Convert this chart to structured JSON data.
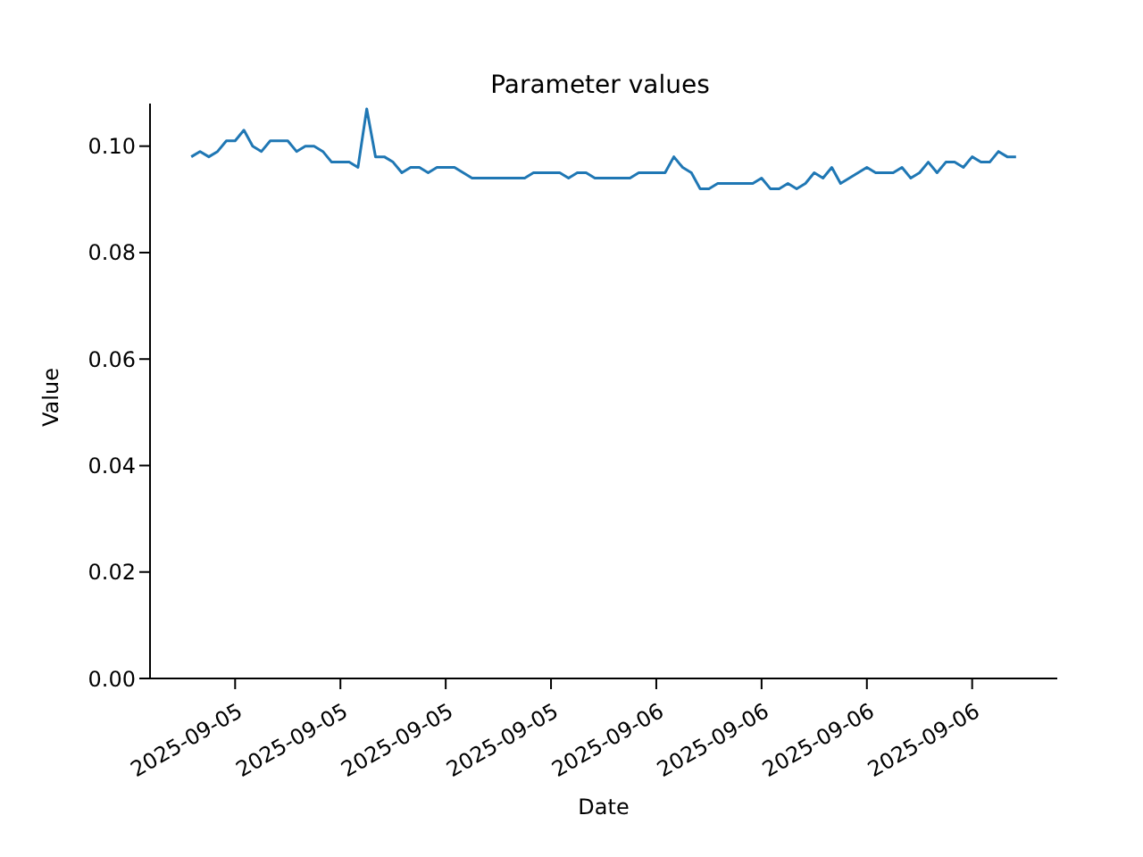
{
  "chart_data": {
    "type": "line",
    "title": "Parameter values",
    "xlabel": "Date",
    "ylabel": "Value",
    "x": [
      "2025-09-04T21:30",
      "2025-09-04T22:00",
      "2025-09-04T22:30",
      "2025-09-04T23:00",
      "2025-09-04T23:30",
      "2025-09-05T00:00",
      "2025-09-05T00:30",
      "2025-09-05T01:00",
      "2025-09-05T01:30",
      "2025-09-05T02:00",
      "2025-09-05T02:30",
      "2025-09-05T03:00",
      "2025-09-05T03:30",
      "2025-09-05T04:00",
      "2025-09-05T04:30",
      "2025-09-05T05:00",
      "2025-09-05T05:30",
      "2025-09-05T06:00",
      "2025-09-05T06:30",
      "2025-09-05T07:00",
      "2025-09-05T07:30",
      "2025-09-05T08:00",
      "2025-09-05T08:30",
      "2025-09-05T09:00",
      "2025-09-05T09:30",
      "2025-09-05T10:00",
      "2025-09-05T10:30",
      "2025-09-05T11:00",
      "2025-09-05T11:30",
      "2025-09-05T12:00",
      "2025-09-05T12:30",
      "2025-09-05T13:00",
      "2025-09-05T13:30",
      "2025-09-05T14:00",
      "2025-09-05T14:30",
      "2025-09-05T15:00",
      "2025-09-05T15:30",
      "2025-09-05T16:00",
      "2025-09-05T16:30",
      "2025-09-05T17:00",
      "2025-09-05T17:30",
      "2025-09-05T18:00",
      "2025-09-05T18:30",
      "2025-09-05T19:00",
      "2025-09-05T19:30",
      "2025-09-05T20:00",
      "2025-09-05T20:30",
      "2025-09-05T21:00",
      "2025-09-05T21:30",
      "2025-09-05T22:00",
      "2025-09-05T22:30",
      "2025-09-05T23:00",
      "2025-09-05T23:30",
      "2025-09-06T00:00",
      "2025-09-06T00:30",
      "2025-09-06T01:00",
      "2025-09-06T01:30",
      "2025-09-06T02:00",
      "2025-09-06T02:30",
      "2025-09-06T03:00",
      "2025-09-06T03:30",
      "2025-09-06T04:00",
      "2025-09-06T04:30",
      "2025-09-06T05:00",
      "2025-09-06T05:30",
      "2025-09-06T06:00",
      "2025-09-06T06:30",
      "2025-09-06T07:00",
      "2025-09-06T07:30",
      "2025-09-06T08:00",
      "2025-09-06T08:30",
      "2025-09-06T09:00",
      "2025-09-06T09:30",
      "2025-09-06T10:00",
      "2025-09-06T10:30",
      "2025-09-06T11:00",
      "2025-09-06T11:30",
      "2025-09-06T12:00",
      "2025-09-06T12:30",
      "2025-09-06T13:00",
      "2025-09-06T13:30",
      "2025-09-06T14:00",
      "2025-09-06T14:30",
      "2025-09-06T15:00",
      "2025-09-06T15:30",
      "2025-09-06T16:00",
      "2025-09-06T16:30",
      "2025-09-06T17:00",
      "2025-09-06T17:30",
      "2025-09-06T18:00",
      "2025-09-06T18:30",
      "2025-09-06T19:00",
      "2025-09-06T19:30",
      "2025-09-06T20:00",
      "2025-09-06T20:30"
    ],
    "series": [
      {
        "color": "#1f77b4",
        "values": [
          0.098,
          0.099,
          0.098,
          0.099,
          0.101,
          0.101,
          0.103,
          0.1,
          0.099,
          0.101,
          0.101,
          0.101,
          0.099,
          0.1,
          0.1,
          0.099,
          0.097,
          0.097,
          0.097,
          0.096,
          0.107,
          0.098,
          0.098,
          0.097,
          0.095,
          0.096,
          0.096,
          0.095,
          0.096,
          0.096,
          0.096,
          0.095,
          0.094,
          0.094,
          0.094,
          0.094,
          0.094,
          0.094,
          0.094,
          0.095,
          0.095,
          0.095,
          0.095,
          0.094,
          0.095,
          0.095,
          0.094,
          0.094,
          0.094,
          0.094,
          0.094,
          0.095,
          0.095,
          0.095,
          0.095,
          0.098,
          0.096,
          0.095,
          0.092,
          0.092,
          0.093,
          0.093,
          0.093,
          0.093,
          0.093,
          0.094,
          0.092,
          0.092,
          0.093,
          0.092,
          0.093,
          0.095,
          0.094,
          0.096,
          0.093,
          0.094,
          0.095,
          0.096,
          0.095,
          0.095,
          0.095,
          0.096,
          0.094,
          0.095,
          0.097,
          0.095,
          0.097,
          0.097,
          0.096,
          0.098,
          0.097,
          0.097,
          0.099,
          0.098,
          0.098
        ]
      }
    ],
    "xlim": [
      "2025-09-04T19:09",
      "2025-09-06T22:51"
    ],
    "xticks": [
      {
        "value": "2025-09-05T00:00",
        "label": "2025-09-05"
      },
      {
        "value": "2025-09-05T06:00",
        "label": "2025-09-05"
      },
      {
        "value": "2025-09-05T12:00",
        "label": "2025-09-05"
      },
      {
        "value": "2025-09-05T18:00",
        "label": "2025-09-05"
      },
      {
        "value": "2025-09-06T00:00",
        "label": "2025-09-06"
      },
      {
        "value": "2025-09-06T06:00",
        "label": "2025-09-06"
      },
      {
        "value": "2025-09-06T12:00",
        "label": "2025-09-06"
      },
      {
        "value": "2025-09-06T18:00",
        "label": "2025-09-06"
      }
    ],
    "ylim": [
      0,
      0.108
    ],
    "yticks": [
      {
        "value": 0,
        "label": "0.00"
      },
      {
        "value": 0.02,
        "label": "0.02"
      },
      {
        "value": 0.04,
        "label": "0.04"
      },
      {
        "value": 0.06,
        "label": "0.06"
      },
      {
        "value": 0.08,
        "label": "0.08"
      },
      {
        "value": 0.1,
        "label": "0.10"
      }
    ],
    "grid": false,
    "marker": "none",
    "line_style": "solid"
  }
}
